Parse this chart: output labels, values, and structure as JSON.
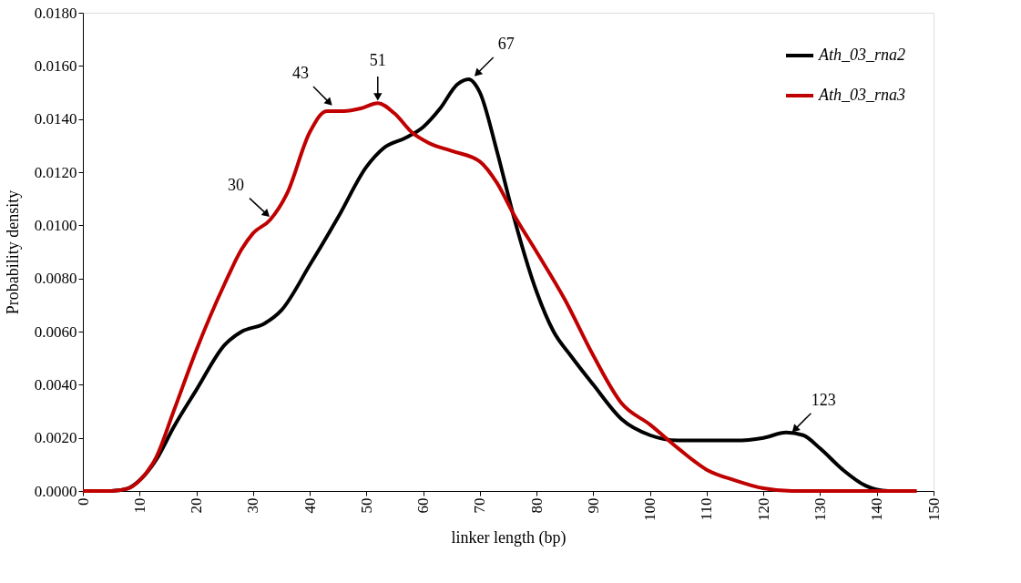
{
  "chart_data": {
    "type": "line",
    "xlabel": "linker length (bp)",
    "ylabel": "Probability density",
    "xlim": [
      0,
      150
    ],
    "xticks": [
      0,
      10,
      20,
      30,
      40,
      50,
      60,
      70,
      80,
      90,
      100,
      110,
      120,
      130,
      140,
      150
    ],
    "ylim": [
      0,
      0.018
    ],
    "yticks": [
      {
        "value": 0,
        "label": "0.0000"
      },
      {
        "value": 0.002,
        "label": "0.0020"
      },
      {
        "value": 0.004,
        "label": "0.0040"
      },
      {
        "value": 0.006,
        "label": "0.0060"
      },
      {
        "value": 0.008,
        "label": "0.0080"
      },
      {
        "value": 0.01,
        "label": "0.0100"
      },
      {
        "value": 0.012,
        "label": "0.0120"
      },
      {
        "value": 0.014,
        "label": "0.0140"
      },
      {
        "value": 0.016,
        "label": "0.0160"
      },
      {
        "value": 0.018,
        "label": "0.0180"
      }
    ],
    "grid": false,
    "legend": "top right",
    "marker": "none",
    "line_style": "solid",
    "series": [
      {
        "name": "Ath_03_rna2",
        "color": "#000000",
        "x": [
          0,
          5,
          8,
          10,
          13,
          16,
          20,
          25,
          28,
          32,
          35,
          40,
          45,
          50,
          53,
          57,
          60,
          63,
          66,
          68,
          70,
          73,
          76,
          80,
          83,
          86,
          90,
          95,
          100,
          105,
          110,
          115,
          120,
          124,
          127,
          130,
          134,
          138,
          142,
          147
        ],
        "values": [
          0,
          0,
          0.0001,
          0.0004,
          0.0012,
          0.0024,
          0.0038,
          0.0055,
          0.006,
          0.0063,
          0.0068,
          0.0085,
          0.0103,
          0.0122,
          0.0129,
          0.0133,
          0.0137,
          0.0144,
          0.0153,
          0.0155,
          0.015,
          0.0128,
          0.0103,
          0.0075,
          0.006,
          0.0051,
          0.004,
          0.0027,
          0.0021,
          0.0019,
          0.0019,
          0.0019,
          0.002,
          0.0022,
          0.0021,
          0.0016,
          0.0008,
          0.0002,
          0,
          0
        ]
      },
      {
        "name": "Ath_03_rna3",
        "color": "#c00000",
        "x": [
          0,
          5,
          8,
          10,
          13,
          16,
          20,
          25,
          28,
          30,
          33,
          36,
          40,
          43,
          46,
          49,
          52,
          55,
          58,
          61,
          65,
          70,
          73,
          76,
          80,
          85,
          90,
          95,
          100,
          105,
          110,
          115,
          120,
          125,
          130,
          135,
          147
        ],
        "values": [
          0,
          0,
          0.0001,
          0.0004,
          0.0013,
          0.003,
          0.0053,
          0.0078,
          0.0091,
          0.0097,
          0.0102,
          0.0112,
          0.0135,
          0.0143,
          0.0143,
          0.0144,
          0.0146,
          0.0142,
          0.0135,
          0.0131,
          0.0128,
          0.0124,
          0.0116,
          0.0104,
          0.009,
          0.0072,
          0.0051,
          0.0033,
          0.0025,
          0.0016,
          0.0008,
          0.0004,
          0.0001,
          0,
          0,
          0,
          0
        ]
      }
    ],
    "annotations": [
      {
        "text": "30",
        "x": 33,
        "y": 0.0103
      },
      {
        "text": "43",
        "x": 44,
        "y": 0.0145
      },
      {
        "text": "51",
        "x": 52,
        "y": 0.0147
      },
      {
        "text": "67",
        "x": 69,
        "y": 0.0156
      },
      {
        "text": "123",
        "x": 125,
        "y": 0.0022
      }
    ]
  }
}
